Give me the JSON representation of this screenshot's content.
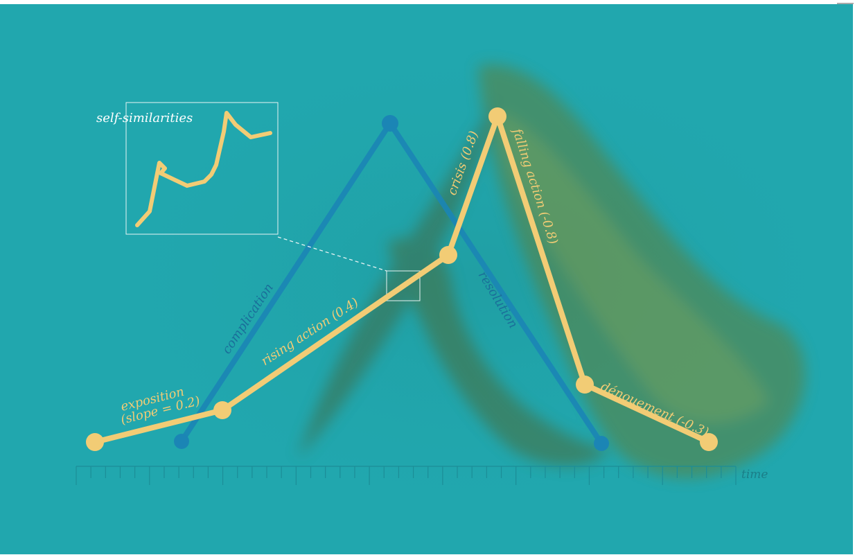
{
  "labels": {
    "inset_title": "self-similarities",
    "axis_label": "time",
    "freytag": {
      "exposition_line1": "exposition",
      "exposition_line2": "(slope = 0.2)",
      "rising": "rising action (0.4)",
      "crisis": "crisis (0.8)",
      "falling": "falling action (-0.8)",
      "denouement": "dénouement (-0.3)"
    },
    "pyramid": {
      "complication": "complication",
      "resolution": "resolution"
    }
  },
  "colors": {
    "background": "#21a7ae",
    "freytag_line": "#f2cc75",
    "pyramid_line": "#1b85b5",
    "inset_frame": "#e8f4f4",
    "axis": "#1c8d97",
    "kelp": "#4f7a3c"
  },
  "freytag_slopes": [
    0.2,
    0.4,
    0.8,
    -0.8,
    -0.3
  ]
}
